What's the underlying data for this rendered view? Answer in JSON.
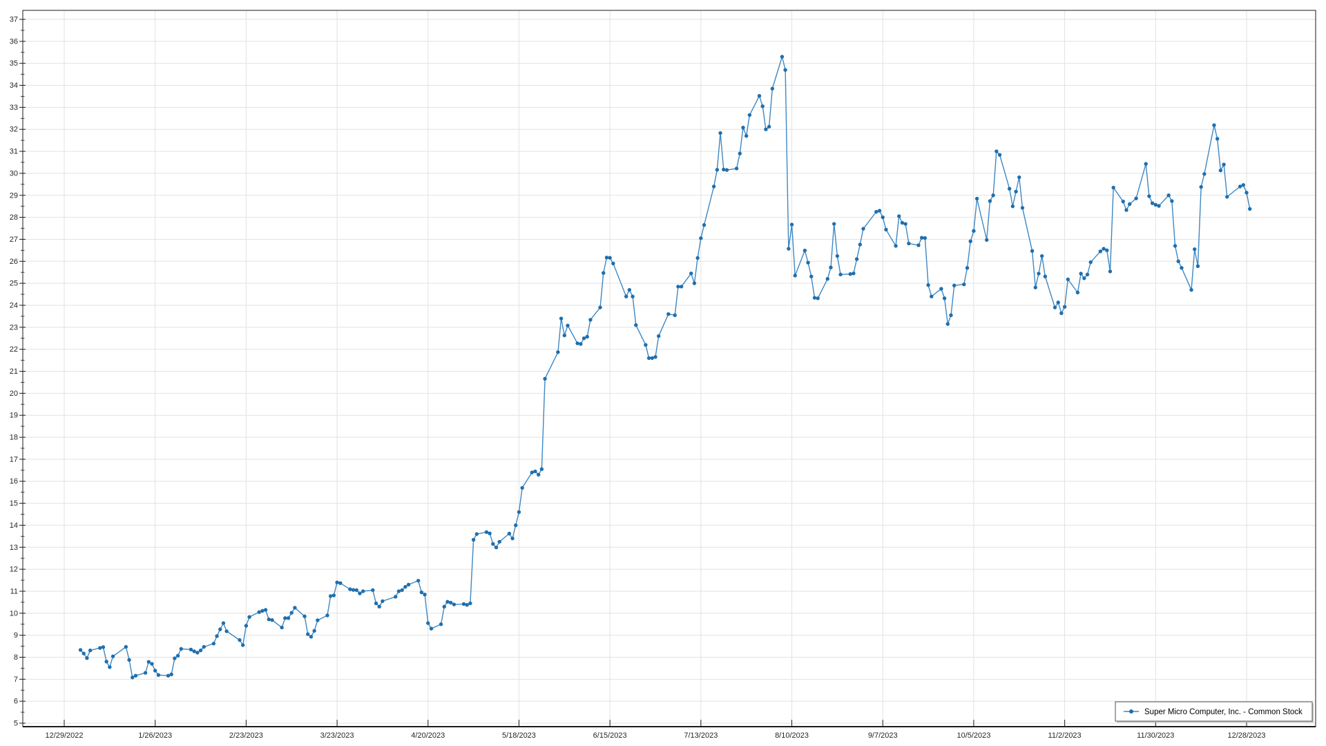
{
  "window": {
    "background": "#ffffff"
  },
  "colors": {
    "line": "#3d87c3",
    "marker": "#1f6fad",
    "grid": "#e2e2e2",
    "axis": "#1a1a1a",
    "tick_label": "#262626",
    "legend_bg": "#ffffff",
    "legend_border": "#6e6e6e",
    "legend_shadow": "#c0c0c0",
    "legend_text": "#000000"
  },
  "legend": {
    "label": "Super Micro Computer, Inc. - Common Stock",
    "position": "bottom-right"
  },
  "chart_data": {
    "type": "line",
    "title": "",
    "xlabel": "",
    "ylabel": "",
    "grid": true,
    "legend_position": "bottom-right",
    "x_axis": {
      "tick_labels": [
        "12/29/2022",
        "1/26/2023",
        "2/23/2023",
        "3/23/2023",
        "4/20/2023",
        "5/18/2023",
        "6/15/2023",
        "7/13/2023",
        "8/10/2023",
        "9/7/2023",
        "10/5/2023",
        "11/2/2023",
        "11/30/2023",
        "12/28/2023"
      ],
      "tick_interval_days": 28
    },
    "y_axis": {
      "min": 5,
      "max": 37,
      "major_step": 1,
      "minor_step": 0.5
    },
    "series": [
      {
        "name": "Super Micro Computer, Inc. - Common Stock",
        "points": [
          [
            "2023-01-03",
            8.33
          ],
          [
            "2023-01-04",
            8.17
          ],
          [
            "2023-01-05",
            7.96
          ],
          [
            "2023-01-06",
            8.31
          ],
          [
            "2023-01-09",
            8.42
          ],
          [
            "2023-01-10",
            8.46
          ],
          [
            "2023-01-11",
            7.8
          ],
          [
            "2023-01-12",
            7.55
          ],
          [
            "2023-01-13",
            8.04
          ],
          [
            "2023-01-17",
            8.47
          ],
          [
            "2023-01-18",
            7.88
          ],
          [
            "2023-01-19",
            7.08
          ],
          [
            "2023-01-20",
            7.16
          ],
          [
            "2023-01-23",
            7.29
          ],
          [
            "2023-01-24",
            7.79
          ],
          [
            "2023-01-25",
            7.7
          ],
          [
            "2023-01-26",
            7.39
          ],
          [
            "2023-01-27",
            7.19
          ],
          [
            "2023-01-30",
            7.16
          ],
          [
            "2023-01-31",
            7.22
          ],
          [
            "2023-02-01",
            7.95
          ],
          [
            "2023-02-02",
            8.07
          ],
          [
            "2023-02-03",
            8.38
          ],
          [
            "2023-02-06",
            8.35
          ],
          [
            "2023-02-07",
            8.27
          ],
          [
            "2023-02-08",
            8.21
          ],
          [
            "2023-02-09",
            8.31
          ],
          [
            "2023-02-10",
            8.47
          ],
          [
            "2023-02-13",
            8.62
          ],
          [
            "2023-02-14",
            8.96
          ],
          [
            "2023-02-15",
            9.27
          ],
          [
            "2023-02-16",
            9.55
          ],
          [
            "2023-02-17",
            9.18
          ],
          [
            "2023-02-21",
            8.78
          ],
          [
            "2023-02-22",
            8.55
          ],
          [
            "2023-02-23",
            9.43
          ],
          [
            "2023-02-24",
            9.83
          ],
          [
            "2023-02-27",
            10.05
          ],
          [
            "2023-02-28",
            10.11
          ],
          [
            "2023-03-01",
            10.15
          ],
          [
            "2023-03-02",
            9.72
          ],
          [
            "2023-03-03",
            9.69
          ],
          [
            "2023-03-06",
            9.35
          ],
          [
            "2023-03-07",
            9.78
          ],
          [
            "2023-03-08",
            9.78
          ],
          [
            "2023-03-09",
            10.02
          ],
          [
            "2023-03-10",
            10.25
          ],
          [
            "2023-03-13",
            9.86
          ],
          [
            "2023-03-14",
            9.05
          ],
          [
            "2023-03-15",
            8.93
          ],
          [
            "2023-03-16",
            9.2
          ],
          [
            "2023-03-17",
            9.68
          ],
          [
            "2023-03-20",
            9.9
          ],
          [
            "2023-03-21",
            10.78
          ],
          [
            "2023-03-22",
            10.81
          ],
          [
            "2023-03-23",
            11.4
          ],
          [
            "2023-03-24",
            11.37
          ],
          [
            "2023-03-27",
            11.09
          ],
          [
            "2023-03-28",
            11.06
          ],
          [
            "2023-03-29",
            11.05
          ],
          [
            "2023-03-30",
            10.9
          ],
          [
            "2023-03-31",
            11.0
          ],
          [
            "2023-04-03",
            11.05
          ],
          [
            "2023-04-04",
            10.45
          ],
          [
            "2023-04-05",
            10.3
          ],
          [
            "2023-04-06",
            10.55
          ],
          [
            "2023-04-10",
            10.75
          ],
          [
            "2023-04-11",
            11.0
          ],
          [
            "2023-04-12",
            11.05
          ],
          [
            "2023-04-13",
            11.2
          ],
          [
            "2023-04-14",
            11.3
          ],
          [
            "2023-04-17",
            11.48
          ],
          [
            "2023-04-18",
            10.95
          ],
          [
            "2023-04-19",
            10.85
          ],
          [
            "2023-04-20",
            9.55
          ],
          [
            "2023-04-21",
            9.3
          ],
          [
            "2023-04-24",
            9.5
          ],
          [
            "2023-04-25",
            10.3
          ],
          [
            "2023-04-26",
            10.52
          ],
          [
            "2023-04-27",
            10.48
          ],
          [
            "2023-04-28",
            10.4
          ],
          [
            "2023-05-01",
            10.42
          ],
          [
            "2023-05-02",
            10.38
          ],
          [
            "2023-05-03",
            10.45
          ],
          [
            "2023-05-04",
            13.34
          ],
          [
            "2023-05-05",
            13.6
          ],
          [
            "2023-05-08",
            13.69
          ],
          [
            "2023-05-09",
            13.63
          ],
          [
            "2023-05-10",
            13.15
          ],
          [
            "2023-05-11",
            12.99
          ],
          [
            "2023-05-12",
            13.25
          ],
          [
            "2023-05-15",
            13.62
          ],
          [
            "2023-05-16",
            13.4
          ],
          [
            "2023-05-17",
            14.0
          ],
          [
            "2023-05-18",
            14.6
          ],
          [
            "2023-05-19",
            15.7
          ],
          [
            "2023-05-22",
            16.4
          ],
          [
            "2023-05-23",
            16.45
          ],
          [
            "2023-05-24",
            16.3
          ],
          [
            "2023-05-25",
            16.55
          ],
          [
            "2023-05-26",
            20.66
          ],
          [
            "2023-05-30",
            21.87
          ],
          [
            "2023-05-31",
            23.4
          ],
          [
            "2023-06-01",
            22.63
          ],
          [
            "2023-06-02",
            23.08
          ],
          [
            "2023-06-05",
            22.27
          ],
          [
            "2023-06-06",
            22.24
          ],
          [
            "2023-06-07",
            22.5
          ],
          [
            "2023-06-08",
            22.57
          ],
          [
            "2023-06-09",
            23.34
          ],
          [
            "2023-06-12",
            23.9
          ],
          [
            "2023-06-13",
            25.47
          ],
          [
            "2023-06-14",
            26.17
          ],
          [
            "2023-06-15",
            26.16
          ],
          [
            "2023-06-16",
            25.9
          ],
          [
            "2023-06-20",
            24.4
          ],
          [
            "2023-06-21",
            24.7
          ],
          [
            "2023-06-22",
            24.4
          ],
          [
            "2023-06-23",
            23.1
          ],
          [
            "2023-06-26",
            22.2
          ],
          [
            "2023-06-27",
            21.6
          ],
          [
            "2023-06-28",
            21.6
          ],
          [
            "2023-06-29",
            21.65
          ],
          [
            "2023-06-30",
            22.6
          ],
          [
            "2023-07-03",
            23.6
          ],
          [
            "2023-07-05",
            23.55
          ],
          [
            "2023-07-06",
            24.85
          ],
          [
            "2023-07-07",
            24.85
          ],
          [
            "2023-07-10",
            25.45
          ],
          [
            "2023-07-11",
            25.0
          ],
          [
            "2023-07-12",
            26.15
          ],
          [
            "2023-07-13",
            27.05
          ],
          [
            "2023-07-14",
            27.65
          ],
          [
            "2023-07-17",
            29.4
          ],
          [
            "2023-07-18",
            30.16
          ],
          [
            "2023-07-19",
            31.83
          ],
          [
            "2023-07-20",
            30.17
          ],
          [
            "2023-07-21",
            30.15
          ],
          [
            "2023-07-24",
            30.22
          ],
          [
            "2023-07-25",
            30.9
          ],
          [
            "2023-07-26",
            32.08
          ],
          [
            "2023-07-27",
            31.7
          ],
          [
            "2023-07-28",
            32.65
          ],
          [
            "2023-07-31",
            33.52
          ],
          [
            "2023-08-01",
            33.05
          ],
          [
            "2023-08-02",
            32.0
          ],
          [
            "2023-08-03",
            32.12
          ],
          [
            "2023-08-04",
            33.85
          ],
          [
            "2023-08-07",
            35.3
          ],
          [
            "2023-08-08",
            34.7
          ],
          [
            "2023-08-09",
            26.57
          ],
          [
            "2023-08-10",
            27.67
          ],
          [
            "2023-08-11",
            25.35
          ],
          [
            "2023-08-14",
            26.49
          ],
          [
            "2023-08-15",
            25.94
          ],
          [
            "2023-08-16",
            25.31
          ],
          [
            "2023-08-17",
            24.34
          ],
          [
            "2023-08-18",
            24.32
          ],
          [
            "2023-08-21",
            25.2
          ],
          [
            "2023-08-22",
            25.72
          ],
          [
            "2023-08-23",
            27.7
          ],
          [
            "2023-08-24",
            26.24
          ],
          [
            "2023-08-25",
            25.4
          ],
          [
            "2023-08-28",
            25.42
          ],
          [
            "2023-08-29",
            25.45
          ],
          [
            "2023-08-30",
            26.1
          ],
          [
            "2023-08-31",
            26.76
          ],
          [
            "2023-09-01",
            27.48
          ],
          [
            "2023-09-05",
            28.25
          ],
          [
            "2023-09-06",
            28.3
          ],
          [
            "2023-09-07",
            28.0
          ],
          [
            "2023-09-08",
            27.44
          ],
          [
            "2023-09-11",
            26.7
          ],
          [
            "2023-09-12",
            28.05
          ],
          [
            "2023-09-13",
            27.75
          ],
          [
            "2023-09-14",
            27.7
          ],
          [
            "2023-09-15",
            26.81
          ],
          [
            "2023-09-18",
            26.73
          ],
          [
            "2023-09-19",
            27.07
          ],
          [
            "2023-09-20",
            27.06
          ],
          [
            "2023-09-21",
            24.92
          ],
          [
            "2023-09-22",
            24.4
          ],
          [
            "2023-09-25",
            24.75
          ],
          [
            "2023-09-26",
            24.32
          ],
          [
            "2023-09-27",
            23.15
          ],
          [
            "2023-09-28",
            23.55
          ],
          [
            "2023-09-29",
            24.9
          ],
          [
            "2023-10-02",
            24.95
          ],
          [
            "2023-10-03",
            25.7
          ],
          [
            "2023-10-04",
            26.91
          ],
          [
            "2023-10-05",
            27.38
          ],
          [
            "2023-10-06",
            28.85
          ],
          [
            "2023-10-09",
            26.97
          ],
          [
            "2023-10-10",
            28.74
          ],
          [
            "2023-10-11",
            29.0
          ],
          [
            "2023-10-12",
            31.0
          ],
          [
            "2023-10-13",
            30.84
          ],
          [
            "2023-10-16",
            29.3
          ],
          [
            "2023-10-17",
            28.5
          ],
          [
            "2023-10-18",
            29.17
          ],
          [
            "2023-10-19",
            29.82
          ],
          [
            "2023-10-20",
            28.43
          ],
          [
            "2023-10-23",
            26.47
          ],
          [
            "2023-10-24",
            24.81
          ],
          [
            "2023-10-25",
            25.44
          ],
          [
            "2023-10-26",
            26.24
          ],
          [
            "2023-10-27",
            25.31
          ],
          [
            "2023-10-30",
            23.9
          ],
          [
            "2023-10-31",
            24.13
          ],
          [
            "2023-11-01",
            23.64
          ],
          [
            "2023-11-02",
            23.93
          ],
          [
            "2023-11-03",
            25.18
          ],
          [
            "2023-11-06",
            24.58
          ],
          [
            "2023-11-07",
            25.44
          ],
          [
            "2023-11-08",
            25.23
          ],
          [
            "2023-11-09",
            25.4
          ],
          [
            "2023-11-10",
            25.96
          ],
          [
            "2023-11-13",
            26.45
          ],
          [
            "2023-11-14",
            26.57
          ],
          [
            "2023-11-15",
            26.5
          ],
          [
            "2023-11-16",
            25.54
          ],
          [
            "2023-11-17",
            29.35
          ],
          [
            "2023-11-20",
            28.72
          ],
          [
            "2023-11-21",
            28.33
          ],
          [
            "2023-11-22",
            28.6
          ],
          [
            "2023-11-24",
            28.86
          ],
          [
            "2023-11-27",
            30.43
          ],
          [
            "2023-11-28",
            28.96
          ],
          [
            "2023-11-29",
            28.64
          ],
          [
            "2023-11-30",
            28.57
          ],
          [
            "2023-12-01",
            28.52
          ],
          [
            "2023-12-04",
            29.0
          ],
          [
            "2023-12-05",
            28.74
          ],
          [
            "2023-12-06",
            26.7
          ],
          [
            "2023-12-07",
            26.0
          ],
          [
            "2023-12-08",
            25.7
          ],
          [
            "2023-12-11",
            24.7
          ],
          [
            "2023-12-12",
            26.55
          ],
          [
            "2023-12-13",
            25.78
          ],
          [
            "2023-12-14",
            29.38
          ],
          [
            "2023-12-15",
            29.97
          ],
          [
            "2023-12-18",
            32.19
          ],
          [
            "2023-12-19",
            31.57
          ],
          [
            "2023-12-20",
            30.13
          ],
          [
            "2023-12-21",
            30.4
          ],
          [
            "2023-12-22",
            28.93
          ],
          [
            "2023-12-26",
            29.4
          ],
          [
            "2023-12-27",
            29.47
          ],
          [
            "2023-12-28",
            29.12
          ],
          [
            "2023-12-29",
            28.38
          ]
        ]
      }
    ]
  }
}
